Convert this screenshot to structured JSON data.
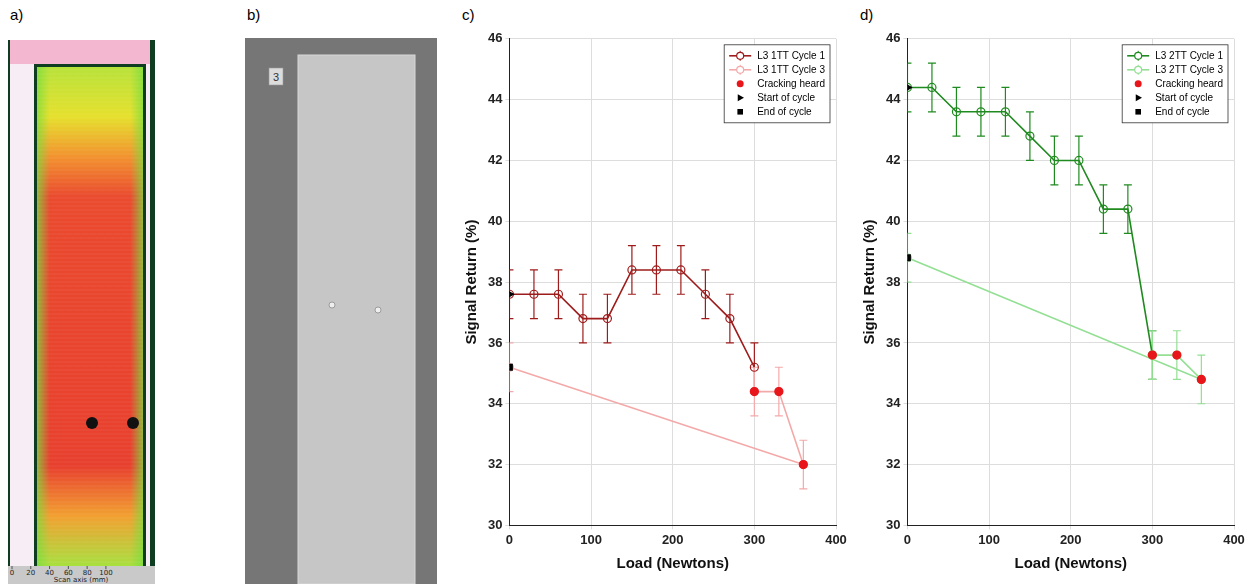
{
  "figure": {
    "panels": [
      {
        "letter": "a)",
        "axis_label": "Scan axis (mm)",
        "xlim": [
          0,
          148
        ],
        "xticks": [
          0,
          20,
          40,
          60,
          80,
          100
        ]
      },
      {
        "letter": "b)",
        "specimen_label": "3"
      }
    ]
  },
  "chart_data": [
    {
      "letter": "c)",
      "type": "line",
      "xlabel": "Load (Newtons)",
      "ylabel": "Signal Return (%)",
      "xlim": [
        0,
        400
      ],
      "xticks": [
        0,
        100,
        200,
        300,
        400
      ],
      "ylim": [
        30,
        46
      ],
      "yticks": [
        30,
        32,
        34,
        36,
        38,
        40,
        42,
        44,
        46
      ],
      "grid": true,
      "legend": "upper right",
      "series": [
        {
          "name": "L3 1TT Cycle 1",
          "type": "line",
          "color": "#9e1b1b",
          "marker": "circle",
          "x": [
            0,
            30,
            60,
            90,
            120,
            150,
            180,
            210,
            240,
            270,
            300
          ],
          "values": [
            37.6,
            37.6,
            37.6,
            36.8,
            36.8,
            38.4,
            38.4,
            38.4,
            37.6,
            36.8,
            35.2
          ],
          "errors": [
            0.8,
            0.8,
            0.8,
            0.8,
            0.8,
            0.8,
            0.8,
            0.8,
            0.8,
            0.8,
            0.8
          ]
        },
        {
          "name": "L3 1TT Cycle 3",
          "type": "line",
          "color": "#f4a9a9",
          "marker": "circle",
          "x": [
            300,
            330,
            360,
            0
          ],
          "values": [
            34.4,
            34.4,
            32.0,
            35.2
          ],
          "errors": [
            0.8,
            0.8,
            0.8,
            0.8
          ]
        },
        {
          "name": "Cracking heard",
          "type": "scatter",
          "color": "#e8161b",
          "marker": "circle",
          "x": [
            300,
            330,
            360
          ],
          "values": [
            34.4,
            34.4,
            32.0
          ]
        },
        {
          "name": "Start of cycle",
          "type": "scatter",
          "color": "#000000",
          "marker": "triangle",
          "x": [
            0
          ],
          "values": [
            37.6
          ]
        },
        {
          "name": "End of cycle",
          "type": "scatter",
          "color": "#000000",
          "marker": "square",
          "x": [
            0
          ],
          "values": [
            35.2
          ]
        }
      ]
    },
    {
      "letter": "d)",
      "type": "line",
      "xlabel": "Load (Newtons)",
      "ylabel": "Signal Return (%)",
      "xlim": [
        0,
        400
      ],
      "xticks": [
        0,
        100,
        200,
        300,
        400
      ],
      "ylim": [
        30,
        46
      ],
      "yticks": [
        30,
        32,
        34,
        36,
        38,
        40,
        42,
        44,
        46
      ],
      "grid": true,
      "legend": "upper right",
      "series": [
        {
          "name": "L3 2TT Cycle 1",
          "type": "line",
          "color": "#1f8a1f",
          "marker": "circle",
          "x": [
            0,
            30,
            60,
            90,
            120,
            150,
            180,
            210,
            240,
            270,
            300
          ],
          "values": [
            44.4,
            44.4,
            43.6,
            43.6,
            43.6,
            42.8,
            42.0,
            42.0,
            40.4,
            40.4,
            35.6
          ],
          "errors": [
            0.8,
            0.8,
            0.8,
            0.8,
            0.8,
            0.8,
            0.8,
            0.8,
            0.8,
            0.8,
            0.8
          ]
        },
        {
          "name": "L3 2TT Cycle 3",
          "type": "line",
          "color": "#93df93",
          "marker": "circle",
          "x": [
            300,
            330,
            360,
            0
          ],
          "values": [
            35.6,
            35.6,
            34.8,
            38.8
          ],
          "errors": [
            0.8,
            0.8,
            0.8,
            0.8
          ]
        },
        {
          "name": "Cracking heard",
          "type": "scatter",
          "color": "#e8161b",
          "marker": "circle",
          "x": [
            300,
            330,
            360
          ],
          "values": [
            35.6,
            35.6,
            34.8
          ]
        },
        {
          "name": "Start of cycle",
          "type": "scatter",
          "color": "#000000",
          "marker": "triangle",
          "x": [
            0
          ],
          "values": [
            44.4
          ]
        },
        {
          "name": "End of cycle",
          "type": "scatter",
          "color": "#000000",
          "marker": "square",
          "x": [
            0
          ],
          "values": [
            38.8
          ]
        }
      ]
    }
  ]
}
